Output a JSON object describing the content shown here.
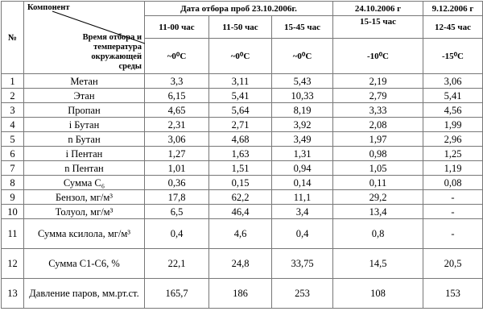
{
  "header": {
    "number": "№",
    "component": "Компонент",
    "diagonal": "Время отбора и температура окружающей среды",
    "date1": "Дата отбора проб 23.10.2006г.",
    "date2": "24.10.2006 г",
    "date3": "9.12.2006 г",
    "times": [
      "11-00 час",
      "11-50 час",
      "15-45 час",
      "15-15 час",
      "12-45 час"
    ],
    "temps": [
      "~0⁰С",
      "~0⁰С",
      "~0⁰С",
      "-10⁰С",
      "-15⁰С"
    ]
  },
  "table": {
    "rows": [
      [
        "1",
        "Метан",
        "3,3",
        "3,11",
        "5,43",
        "2,19",
        "3,06"
      ],
      [
        "2",
        "Этан",
        "6,15",
        "5,41",
        "10,33",
        "2,79",
        "5,41"
      ],
      [
        "3",
        "Пропан",
        "4,65",
        "5,64",
        "8,19",
        "3,33",
        "4,56"
      ],
      [
        "4",
        "i Бутан",
        "2,31",
        "2,71",
        "3,92",
        "2,08",
        "1,99"
      ],
      [
        "5",
        "n Бутан",
        "3,06",
        "4,68",
        "3,49",
        "1,97",
        "2,96"
      ],
      [
        "6",
        "i Пентан",
        "1,27",
        "1,63",
        "1,31",
        "0,98",
        "1,25"
      ],
      [
        "7",
        "n Пентан",
        "1,01",
        "1,51",
        "0,94",
        "1,05",
        "1,19"
      ],
      [
        "8",
        "Сумма С₆",
        "0,36",
        "0,15",
        "0,14",
        "0,11",
        "0,08"
      ],
      [
        "9",
        "Бензол, мг/м³",
        "17,8",
        "62,2",
        "11,1",
        "29,2",
        "-"
      ],
      [
        "10",
        "Толуол, мг/м³",
        "6,5",
        "46,4",
        "3,4",
        "13,4",
        "-"
      ],
      [
        "11",
        "Сумма ксилола, мг/м³",
        "0,4",
        "4,6",
        "0,4",
        "0,8",
        "-"
      ],
      [
        "12",
        "Сумма С1-С6, %",
        "22,1",
        "24,8",
        "33,75",
        "14,5",
        "20,5"
      ],
      [
        "13",
        "Давление паров, мм.рт.ст.",
        "165,7",
        "186",
        "253",
        "108",
        "153"
      ]
    ]
  }
}
